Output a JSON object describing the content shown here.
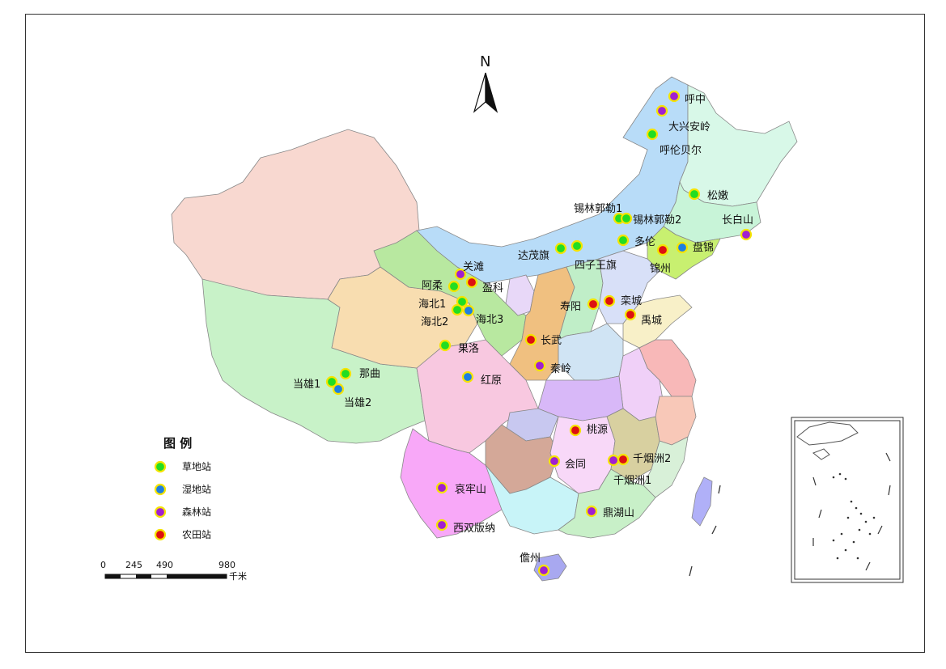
{
  "north_label": "N",
  "legend": {
    "title": "图 例",
    "items": [
      {
        "label": "草地站",
        "color": "#22dd22"
      },
      {
        "label": "湿地站",
        "color": "#1e7fe0"
      },
      {
        "label": "森林站",
        "color": "#a020d0"
      },
      {
        "label": "农田站",
        "color": "#dd1111"
      }
    ]
  },
  "scale": {
    "ticks": [
      "0",
      "245",
      "490",
      "980"
    ],
    "unit": "千米"
  },
  "colors": {
    "marker_ring": "#f5e400"
  },
  "stations": [
    {
      "name": "呼中",
      "type": "森林站"
    },
    {
      "name": "大兴安岭",
      "type": "森林站"
    },
    {
      "name": "呼伦贝尔",
      "type": "草地站"
    },
    {
      "name": "松嫩",
      "type": "草地站"
    },
    {
      "name": "锡林郭勒1",
      "type": "草地站"
    },
    {
      "name": "锡林郭勒2",
      "type": "草地站"
    },
    {
      "name": "长白山",
      "type": "森林站"
    },
    {
      "name": "多伦",
      "type": "草地站"
    },
    {
      "name": "盘锦",
      "type": "湿地站"
    },
    {
      "name": "锦州",
      "type": "农田站"
    },
    {
      "name": "达茂旗",
      "type": "草地站"
    },
    {
      "name": "四子王旗",
      "type": "草地站"
    },
    {
      "name": "关滩",
      "type": "森林站"
    },
    {
      "name": "盈科",
      "type": "农田站"
    },
    {
      "name": "阿柔",
      "type": "草地站"
    },
    {
      "name": "海北1",
      "type": "草地站"
    },
    {
      "name": "海北2",
      "type": "草地站"
    },
    {
      "name": "海北3",
      "type": "湿地站"
    },
    {
      "name": "寿阳",
      "type": "农田站"
    },
    {
      "name": "栾城",
      "type": "农田站"
    },
    {
      "name": "禹城",
      "type": "农田站"
    },
    {
      "name": "长武",
      "type": "农田站"
    },
    {
      "name": "果洛",
      "type": "草地站"
    },
    {
      "name": "秦岭",
      "type": "森林站"
    },
    {
      "name": "红原",
      "type": "湿地站"
    },
    {
      "name": "那曲",
      "type": "草地站"
    },
    {
      "name": "当雄1",
      "type": "草地站"
    },
    {
      "name": "当雄2",
      "type": "湿地站"
    },
    {
      "name": "桃源",
      "type": "农田站"
    },
    {
      "name": "会同",
      "type": "森林站"
    },
    {
      "name": "千烟洲2",
      "type": "农田站"
    },
    {
      "name": "千烟洲1",
      "type": "森林站"
    },
    {
      "name": "哀牢山",
      "type": "森林站"
    },
    {
      "name": "鼎湖山",
      "type": "森林站"
    },
    {
      "name": "西双版纳",
      "type": "森林站"
    },
    {
      "name": "儋州",
      "type": "森林站"
    }
  ]
}
